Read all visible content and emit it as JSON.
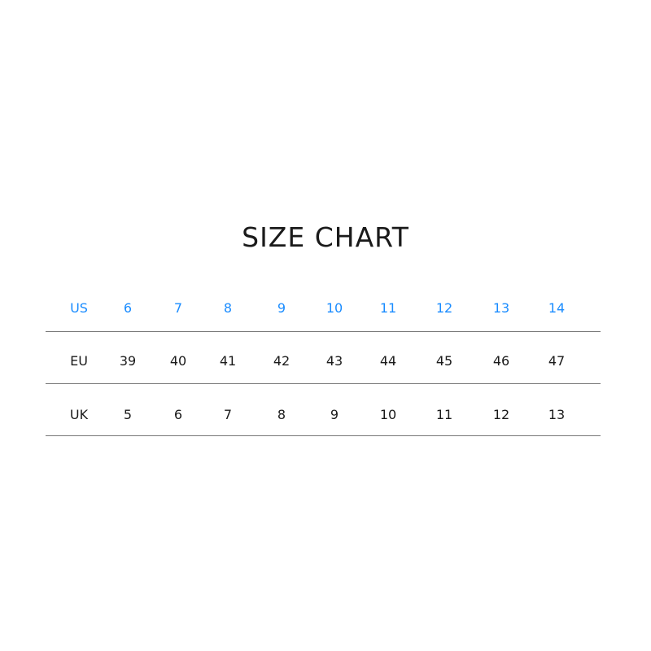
{
  "title": "SIZE CHART",
  "colors": {
    "header": "#1a8cff",
    "text": "#1a1a1a",
    "rule": "#777777"
  },
  "table": {
    "rows": [
      {
        "label": "US",
        "values": [
          "6",
          "7",
          "8",
          "9",
          "10",
          "11",
          "12",
          "13",
          "14"
        ]
      },
      {
        "label": "EU",
        "values": [
          "39",
          "40",
          "41",
          "42",
          "43",
          "44",
          "45",
          "46",
          "47"
        ]
      },
      {
        "label": "UK",
        "values": [
          "5",
          "6",
          "7",
          "8",
          "9",
          "10",
          "11",
          "12",
          "13"
        ]
      }
    ]
  }
}
